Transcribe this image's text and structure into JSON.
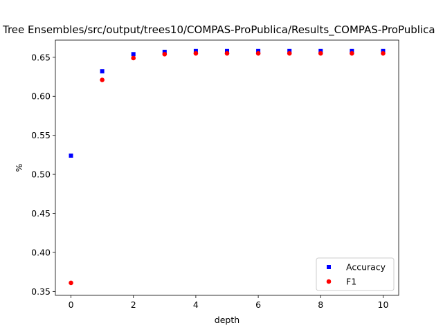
{
  "chart_data": {
    "type": "scatter",
    "title": "Tree Ensembles/src/output/trees10/COMPAS-ProPublica/Results_COMPAS-ProPublica",
    "xlabel": "depth",
    "ylabel": "%",
    "xlim": [
      -0.5,
      10.5
    ],
    "ylim": [
      0.345,
      0.672
    ],
    "xticks": [
      0,
      2,
      4,
      6,
      8,
      10
    ],
    "xtick_labels": [
      "0",
      "2",
      "4",
      "6",
      "8",
      "10"
    ],
    "yticks": [
      0.35,
      0.4,
      0.45,
      0.5,
      0.55,
      0.6,
      0.65
    ],
    "ytick_labels": [
      "0.35",
      "0.40",
      "0.45",
      "0.50",
      "0.55",
      "0.60",
      "0.65"
    ],
    "grid": false,
    "legend_position": "bottom-right",
    "x": [
      0,
      1,
      2,
      3,
      4,
      5,
      6,
      7,
      8,
      9,
      10
    ],
    "series": [
      {
        "name": "Accuracy",
        "marker": "square",
        "color": "#0000ff",
        "values": [
          0.524,
          0.632,
          0.654,
          0.657,
          0.658,
          0.658,
          0.658,
          0.658,
          0.658,
          0.658,
          0.658
        ]
      },
      {
        "name": "F1",
        "marker": "circle",
        "color": "#ff0000",
        "values": [
          0.361,
          0.621,
          0.649,
          0.654,
          0.655,
          0.655,
          0.655,
          0.655,
          0.655,
          0.655,
          0.655
        ]
      }
    ]
  }
}
